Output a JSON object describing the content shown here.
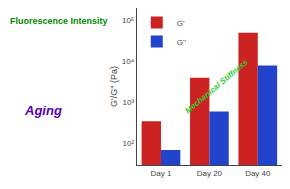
{
  "chart_data": {
    "type": "bar",
    "categories": [
      "Day 1",
      "Day 20",
      "Day 40"
    ],
    "series": [
      {
        "name": "G'",
        "color": "#cc2222",
        "values": [
          350,
          4000,
          50000
        ]
      },
      {
        "name": "G''",
        "color": "#2244cc",
        "values": [
          70,
          600,
          8000
        ]
      }
    ],
    "ylabel": "G'/G'' (Pa)",
    "log": "y",
    "ylim": [
      30,
      200000
    ],
    "yticks": [
      {
        "value": 100,
        "label": "10²"
      },
      {
        "value": 1000,
        "label": "10³"
      },
      {
        "value": 10000,
        "label": "10⁴"
      },
      {
        "value": 100000,
        "label": "10⁵"
      }
    ],
    "grid": false,
    "legend": "upper left",
    "annotations": [
      {
        "text": "Mechanical Stiffness",
        "color": "#33cc33"
      },
      {
        "text": "Fluorescence Intensity",
        "color": "#008800"
      },
      {
        "text": "Aging",
        "color": "#5500bb"
      }
    ]
  }
}
